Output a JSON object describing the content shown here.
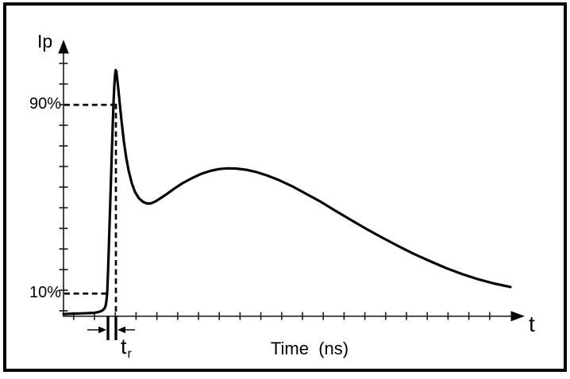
{
  "figure": {
    "background": "#ffffff",
    "border_color": "#000000",
    "line_color": "#060606"
  },
  "axes": {
    "x_tick_count": 21,
    "y_tick_count": 13
  },
  "chart_data": {
    "type": "line",
    "title": "",
    "ylabel": "Ip",
    "xlabel": "Time  (ns)",
    "x_axis_symbol": "t",
    "x_units": "normalized 0-100 of visible time axis (ns, unlabeled ticks)",
    "y_units": "percent of pulse reference amplitude",
    "grid": false,
    "reference_lines": [
      {
        "label": "90%",
        "y": 90,
        "x_end": 10.86
      },
      {
        "label": "10%",
        "y": 10,
        "x_end": 9.6
      }
    ],
    "peak_drop_line": {
      "x": 11.38,
      "y_top": 90.5,
      "y_bottom": 1.0
    },
    "rise_time_marker": {
      "label": "t",
      "sub": "r",
      "x_start": 9.66,
      "x_end": 11.38
    },
    "series": [
      {
        "name": "Ip",
        "points": [
          [
            0,
            1.3
          ],
          [
            2.6,
            1.5
          ],
          [
            4.3,
            1.6
          ],
          [
            5.5,
            1.7
          ],
          [
            6.6,
            1.8
          ],
          [
            7.4,
            2.1
          ],
          [
            8.1,
            2.5
          ],
          [
            8.6,
            3.1
          ],
          [
            9.0,
            4.0
          ],
          [
            9.2,
            5.4
          ],
          [
            9.34,
            7.4
          ],
          [
            9.45,
            9.4
          ],
          [
            9.52,
            11.4
          ],
          [
            9.66,
            18.5
          ],
          [
            9.83,
            28.6
          ],
          [
            10.0,
            39.3
          ],
          [
            10.17,
            49.8
          ],
          [
            10.34,
            60.5
          ],
          [
            10.52,
            71.3
          ],
          [
            10.69,
            81.3
          ],
          [
            10.86,
            90.8
          ],
          [
            11.03,
            98.2
          ],
          [
            11.21,
            102.9
          ],
          [
            11.33,
            104.7
          ],
          [
            11.47,
            104.2
          ],
          [
            11.64,
            101.5
          ],
          [
            11.9,
            96.8
          ],
          [
            12.24,
            90.1
          ],
          [
            12.59,
            83.4
          ],
          [
            13.1,
            74.6
          ],
          [
            13.62,
            67.6
          ],
          [
            14.14,
            62.2
          ],
          [
            14.83,
            56.8
          ],
          [
            15.52,
            53.1
          ],
          [
            16.38,
            50.4
          ],
          [
            17.24,
            48.9
          ],
          [
            18.1,
            48.2
          ],
          [
            18.97,
            48.2
          ],
          [
            20.0,
            49.1
          ],
          [
            21.21,
            50.6
          ],
          [
            22.59,
            52.4
          ],
          [
            24.14,
            54.6
          ],
          [
            25.86,
            56.8
          ],
          [
            27.76,
            58.8
          ],
          [
            29.83,
            60.7
          ],
          [
            31.9,
            62.0
          ],
          [
            33.79,
            62.8
          ],
          [
            35.69,
            63.1
          ],
          [
            37.59,
            63.0
          ],
          [
            39.66,
            62.5
          ],
          [
            41.9,
            61.5
          ],
          [
            44.31,
            60.0
          ],
          [
            46.9,
            58.0
          ],
          [
            49.66,
            55.5
          ],
          [
            52.59,
            52.4
          ],
          [
            55.69,
            49.1
          ],
          [
            58.97,
            45.2
          ],
          [
            62.41,
            41.2
          ],
          [
            65.86,
            37.3
          ],
          [
            69.31,
            33.6
          ],
          [
            72.76,
            30.1
          ],
          [
            76.21,
            26.7
          ],
          [
            79.66,
            23.7
          ],
          [
            83.1,
            20.8
          ],
          [
            86.55,
            18.3
          ],
          [
            90.0,
            16.1
          ],
          [
            93.45,
            14.3
          ],
          [
            97.07,
            12.8
          ]
        ]
      }
    ]
  }
}
